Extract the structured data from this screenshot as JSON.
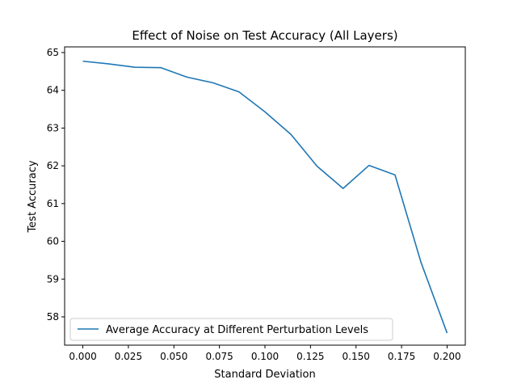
{
  "chart_data": {
    "type": "line",
    "title": "Effect of Noise on Test Accuracy (All Layers)",
    "xlabel": "Standard Deviation",
    "ylabel": "Test Accuracy",
    "xlim": [
      -0.01,
      0.21
    ],
    "ylim": [
      57.25,
      65.15
    ],
    "xticks": [
      0.0,
      0.025,
      0.05,
      0.075,
      0.1,
      0.125,
      0.15,
      0.175,
      0.2
    ],
    "xtick_labels": [
      "0.000",
      "0.025",
      "0.050",
      "0.075",
      "0.100",
      "0.125",
      "0.150",
      "0.175",
      "0.200"
    ],
    "yticks": [
      58,
      59,
      60,
      61,
      62,
      63,
      64,
      65
    ],
    "ytick_labels": [
      "58",
      "59",
      "60",
      "61",
      "62",
      "63",
      "64",
      "65"
    ],
    "grid": false,
    "legend_position": "lower-left",
    "series": [
      {
        "name": "Average Accuracy at Different Perturbation Levels",
        "color": "#1f77b4",
        "x": [
          0.0,
          0.0143,
          0.0286,
          0.0429,
          0.0571,
          0.0714,
          0.0857,
          0.1,
          0.1143,
          0.1286,
          0.1429,
          0.1571,
          0.1714,
          0.1857,
          0.2
        ],
        "y": [
          64.77,
          64.7,
          64.61,
          64.6,
          64.35,
          64.2,
          63.96,
          63.43,
          62.83,
          61.99,
          61.4,
          62.01,
          61.76,
          59.44,
          57.57
        ]
      }
    ]
  }
}
